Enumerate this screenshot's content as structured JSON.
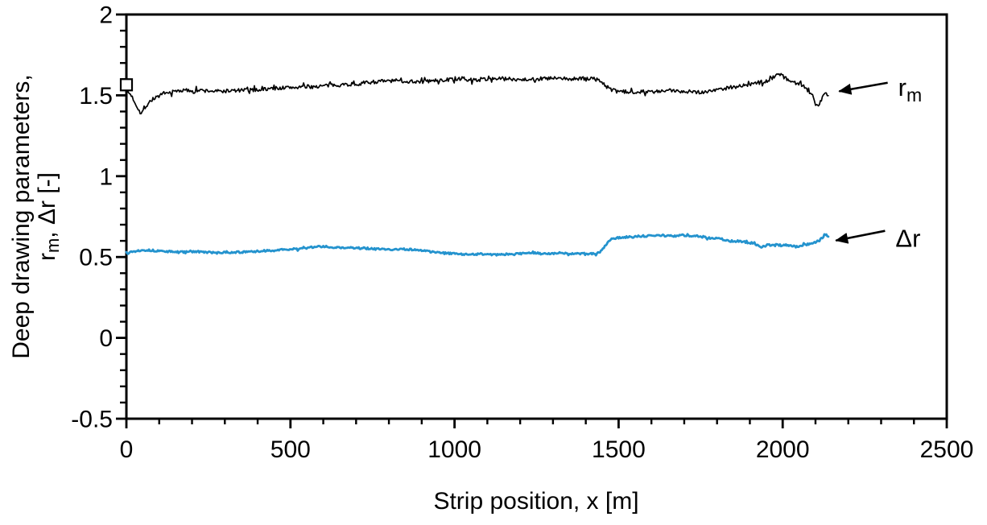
{
  "page": {
    "background_color": "#ffffff"
  },
  "chart_data": {
    "type": "line",
    "title": "",
    "xlabel": "Strip position, x [m]",
    "ylabel": {
      "line1": "Deep drawing parameters,",
      "line2_base": "r",
      "line2_sub": "m",
      "line2_rest": ", Δr [-]"
    },
    "xlim": [
      0,
      2500
    ],
    "ylim": [
      -0.5,
      2
    ],
    "grid": false,
    "legend_position": "none",
    "axis_color": "#000000",
    "x_major_ticks": [
      {
        "v": 0,
        "label": "0"
      },
      {
        "v": 500,
        "label": "500"
      },
      {
        "v": 1000,
        "label": "1000"
      },
      {
        "v": 1500,
        "label": "1500"
      },
      {
        "v": 2000,
        "label": "2000"
      },
      {
        "v": 2500,
        "label": "2500"
      }
    ],
    "x_minor_step": 100,
    "y_major_ticks": [
      {
        "v": -0.5,
        "label": "-0.5"
      },
      {
        "v": 0,
        "label": "0"
      },
      {
        "v": 0.5,
        "label": "0.5"
      },
      {
        "v": 1,
        "label": "1"
      },
      {
        "v": 1.5,
        "label": "1.5"
      },
      {
        "v": 2,
        "label": "2"
      }
    ],
    "y_minor_step": 0.1,
    "series": [
      {
        "name": "r_m",
        "color": "#000000",
        "stroke_width": 1.7,
        "noise_amplitude": 0.012,
        "spike_probability": 0.1,
        "spike_scale": 2.2,
        "seed": 7,
        "sample_step": 3,
        "x_end": 2140,
        "keypoints": [
          [
            0,
            1.53
          ],
          [
            15,
            1.5
          ],
          [
            30,
            1.44
          ],
          [
            45,
            1.385
          ],
          [
            55,
            1.42
          ],
          [
            70,
            1.46
          ],
          [
            90,
            1.49
          ],
          [
            120,
            1.51
          ],
          [
            160,
            1.53
          ],
          [
            220,
            1.53
          ],
          [
            280,
            1.525
          ],
          [
            340,
            1.53
          ],
          [
            400,
            1.535
          ],
          [
            460,
            1.545
          ],
          [
            520,
            1.55
          ],
          [
            580,
            1.555
          ],
          [
            640,
            1.565
          ],
          [
            700,
            1.57
          ],
          [
            760,
            1.585
          ],
          [
            820,
            1.59
          ],
          [
            880,
            1.585
          ],
          [
            940,
            1.59
          ],
          [
            1000,
            1.6
          ],
          [
            1060,
            1.595
          ],
          [
            1120,
            1.605
          ],
          [
            1180,
            1.6
          ],
          [
            1240,
            1.6
          ],
          [
            1300,
            1.605
          ],
          [
            1360,
            1.6
          ],
          [
            1420,
            1.605
          ],
          [
            1445,
            1.59
          ],
          [
            1465,
            1.55
          ],
          [
            1490,
            1.525
          ],
          [
            1530,
            1.52
          ],
          [
            1570,
            1.525
          ],
          [
            1610,
            1.52
          ],
          [
            1660,
            1.53
          ],
          [
            1710,
            1.525
          ],
          [
            1760,
            1.52
          ],
          [
            1800,
            1.535
          ],
          [
            1840,
            1.55
          ],
          [
            1880,
            1.56
          ],
          [
            1920,
            1.575
          ],
          [
            1955,
            1.59
          ],
          [
            1985,
            1.635
          ],
          [
            2000,
            1.62
          ],
          [
            2020,
            1.59
          ],
          [
            2045,
            1.575
          ],
          [
            2070,
            1.55
          ],
          [
            2090,
            1.5
          ],
          [
            2105,
            1.435
          ],
          [
            2118,
            1.47
          ],
          [
            2128,
            1.52
          ],
          [
            2140,
            1.505
          ]
        ]
      },
      {
        "name": "Δr",
        "color": "#2493CE",
        "stroke_width": 2.8,
        "noise_amplitude": 0.006,
        "spike_probability": 0.06,
        "spike_scale": 2.0,
        "seed": 13,
        "sample_step": 3,
        "x_end": 2140,
        "keypoints": [
          [
            0,
            0.53
          ],
          [
            25,
            0.535
          ],
          [
            50,
            0.545
          ],
          [
            80,
            0.54
          ],
          [
            120,
            0.535
          ],
          [
            160,
            0.53
          ],
          [
            200,
            0.535
          ],
          [
            240,
            0.53
          ],
          [
            280,
            0.525
          ],
          [
            320,
            0.53
          ],
          [
            360,
            0.53
          ],
          [
            400,
            0.535
          ],
          [
            440,
            0.54
          ],
          [
            480,
            0.545
          ],
          [
            520,
            0.55
          ],
          [
            560,
            0.56
          ],
          [
            600,
            0.565
          ],
          [
            640,
            0.56
          ],
          [
            680,
            0.555
          ],
          [
            720,
            0.555
          ],
          [
            760,
            0.55
          ],
          [
            800,
            0.545
          ],
          [
            840,
            0.55
          ],
          [
            880,
            0.545
          ],
          [
            920,
            0.535
          ],
          [
            960,
            0.525
          ],
          [
            1000,
            0.52
          ],
          [
            1040,
            0.515
          ],
          [
            1080,
            0.52
          ],
          [
            1120,
            0.515
          ],
          [
            1160,
            0.515
          ],
          [
            1200,
            0.52
          ],
          [
            1240,
            0.525
          ],
          [
            1280,
            0.52
          ],
          [
            1320,
            0.525
          ],
          [
            1360,
            0.52
          ],
          [
            1400,
            0.52
          ],
          [
            1435,
            0.52
          ],
          [
            1455,
            0.56
          ],
          [
            1475,
            0.61
          ],
          [
            1500,
            0.62
          ],
          [
            1540,
            0.625
          ],
          [
            1580,
            0.63
          ],
          [
            1620,
            0.635
          ],
          [
            1660,
            0.63
          ],
          [
            1700,
            0.635
          ],
          [
            1740,
            0.63
          ],
          [
            1770,
            0.62
          ],
          [
            1800,
            0.615
          ],
          [
            1840,
            0.6
          ],
          [
            1880,
            0.595
          ],
          [
            1910,
            0.585
          ],
          [
            1935,
            0.56
          ],
          [
            1955,
            0.575
          ],
          [
            1980,
            0.575
          ],
          [
            2010,
            0.57
          ],
          [
            2040,
            0.565
          ],
          [
            2065,
            0.575
          ],
          [
            2090,
            0.585
          ],
          [
            2110,
            0.6
          ],
          [
            2125,
            0.625
          ],
          [
            2133,
            0.645
          ],
          [
            2140,
            0.62
          ]
        ]
      }
    ],
    "start_marker": {
      "shape": "open-square",
      "x": 0,
      "y": 1.565,
      "size": 14,
      "fill": "#ffffff",
      "stroke": "#000000",
      "stroke_width": 2.2
    },
    "annotations": [
      {
        "label_base": "r",
        "label_sub": "m",
        "arrow_tail": [
          2320,
          1.578
        ],
        "arrow_tip": [
          2172,
          1.525
        ],
        "label_pos": [
          2352,
          1.498
        ],
        "color": "#000000"
      },
      {
        "label_base": "Δr",
        "label_sub": "",
        "arrow_tail": [
          2312,
          0.662
        ],
        "arrow_tip": [
          2162,
          0.602
        ],
        "label_pos": [
          2344,
          0.563
        ],
        "color": "#000000"
      }
    ]
  }
}
